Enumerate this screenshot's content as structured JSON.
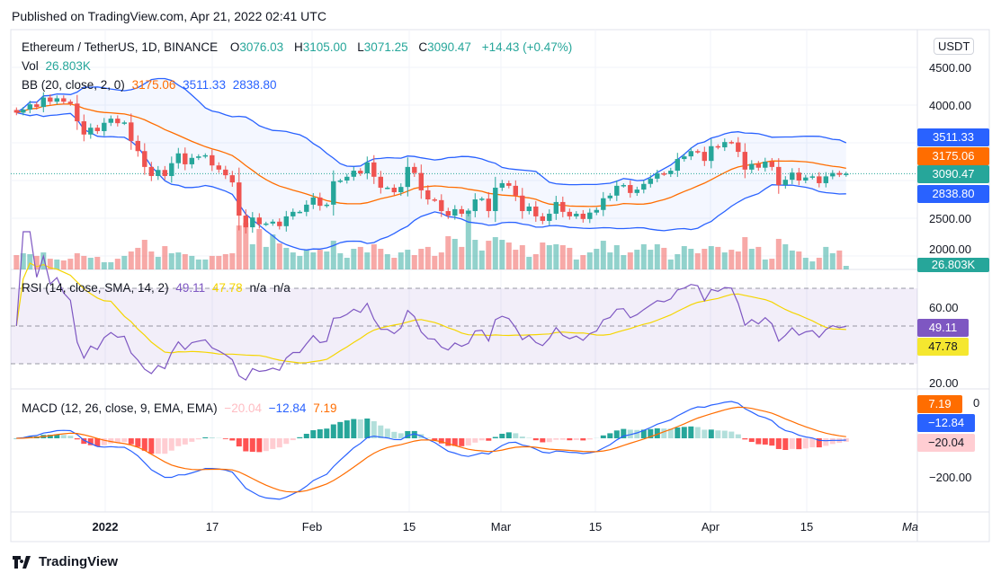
{
  "header": {
    "published": "Published on TradingView.com, Apr 21, 2022 02:41 UTC"
  },
  "legend": {
    "symbol": "Ethereum / TetherUS, 1D, BINANCE",
    "o_label": "O",
    "o": "3076.03",
    "h_label": "H",
    "h": "3105.00",
    "l_label": "L",
    "l": "3071.25",
    "c_label": "C",
    "c": "3090.47",
    "change": "+14.43 (+0.47%)"
  },
  "vol": {
    "label": "Vol",
    "value": "26.803K"
  },
  "bb": {
    "label": "BB (20, close, 2, 0)",
    "basis": "3175.06",
    "upper": "3511.33",
    "lower": "2838.80"
  },
  "rsi": {
    "label": "RSI (14, close, SMA, 14, 2)",
    "value": "49.11",
    "sma": "47.78",
    "na1": "n/a",
    "na2": "n/a"
  },
  "macd": {
    "label": "MACD (12, 26, close, 9, EMA, EMA)",
    "hist": "−20.04",
    "macd": "−12.84",
    "signal": "7.19"
  },
  "price_axis": {
    "currency": "USDT",
    "ticks": [
      "4500.00",
      "4000.00",
      "2500.00",
      "2000.00"
    ]
  },
  "rsi_axis": {
    "ticks": [
      "60.00",
      "20.00"
    ]
  },
  "macd_axis": {
    "ticks": [
      "0",
      "−200.00"
    ]
  },
  "time_axis": [
    "2022",
    "17",
    "Feb",
    "15",
    "Mar",
    "15",
    "Apr",
    "15",
    "Ma"
  ],
  "tags": {
    "upper": "3511.33",
    "basis": "3175.06",
    "last": "3090.47",
    "lower": "2838.80",
    "vol": "26.803K",
    "rsi": "49.11",
    "rsi_sma": "47.78",
    "signal": "7.19",
    "macd": "−12.84",
    "hist": "−20.04"
  },
  "colors": {
    "up": "#26a69a",
    "down": "#ef5350",
    "bb_band": "#2962ff",
    "bb_basis": "#ff6d00",
    "rsi": "#7e57c2",
    "rsi_sma": "#f5d500",
    "macd": "#2962ff",
    "signal": "#ff6d00"
  },
  "logo": {
    "text": "TradingView"
  },
  "chart_data": {
    "type": "candlestick",
    "x_start": "2021-12-19",
    "x_end": "2022-04-21",
    "interval": "1D",
    "first_open": 3935,
    "close": [
      3900,
      3940,
      4010,
      3975,
      4100,
      4045,
      4090,
      4045,
      4020,
      3785,
      3610,
      3700,
      3655,
      3765,
      3820,
      3760,
      3770,
      3525,
      3390,
      3180,
      3060,
      3140,
      3060,
      3230,
      3360,
      3215,
      3300,
      3320,
      3335,
      3200,
      3145,
      3070,
      2975,
      2535,
      2380,
      2510,
      2420,
      2430,
      2455,
      2395,
      2525,
      2585,
      2585,
      2680,
      2775,
      2665,
      2680,
      2990,
      3000,
      3050,
      3130,
      3095,
      3240,
      3050,
      2905,
      2905,
      2845,
      2915,
      3180,
      3100,
      2870,
      2750,
      2740,
      2595,
      2535,
      2620,
      2560,
      2595,
      2750,
      2760,
      2595,
      2905,
      2965,
      2930,
      2800,
      2595,
      2655,
      2525,
      2465,
      2560,
      2715,
      2585,
      2525,
      2560,
      2490,
      2575,
      2610,
      2765,
      2800,
      2930,
      2940,
      2835,
      2880,
      2955,
      3025,
      3095,
      3085,
      3130,
      3285,
      3320,
      3390,
      3380,
      3260,
      3455,
      3440,
      3510,
      3505,
      3380,
      3145,
      3220,
      3170,
      3250,
      3180,
      2940,
      3010,
      3105,
      3000,
      3040,
      3055,
      2965,
      3055,
      3100,
      3076,
      3090.47
    ],
    "volume_k": [
      107,
      121,
      114,
      101,
      127,
      80,
      74,
      67,
      80,
      121,
      101,
      87,
      94,
      54,
      54,
      80,
      101,
      134,
      161,
      221,
      134,
      94,
      174,
      121,
      127,
      114,
      101,
      74,
      74,
      101,
      101,
      114,
      121,
      328,
      348,
      188,
      302,
      168,
      261,
      194,
      161,
      127,
      101,
      147,
      127,
      147,
      134,
      214,
      121,
      87,
      154,
      168,
      127,
      188,
      154,
      114,
      87,
      127,
      147,
      107,
      154,
      168,
      101,
      127,
      248,
      228,
      168,
      442,
      221,
      141,
      214,
      241,
      221,
      201,
      147,
      181,
      94,
      114,
      201,
      181,
      188,
      181,
      161,
      74,
      107,
      127,
      154,
      214,
      127,
      181,
      107,
      127,
      147,
      188,
      147,
      188,
      161,
      74,
      114,
      174,
      154,
      121,
      154,
      174,
      168,
      127,
      147,
      134,
      241,
      154,
      168,
      74,
      80,
      228,
      188,
      141,
      134,
      87,
      60,
      87,
      168,
      121,
      141,
      26.803
    ],
    "y_range": [
      1950,
      4700
    ],
    "indicators": [
      "BB (20, close, 2, 0)",
      "RSI (14, close, SMA, 14, 2)",
      "MACD (12, 26, close, 9, EMA, EMA)"
    ]
  }
}
